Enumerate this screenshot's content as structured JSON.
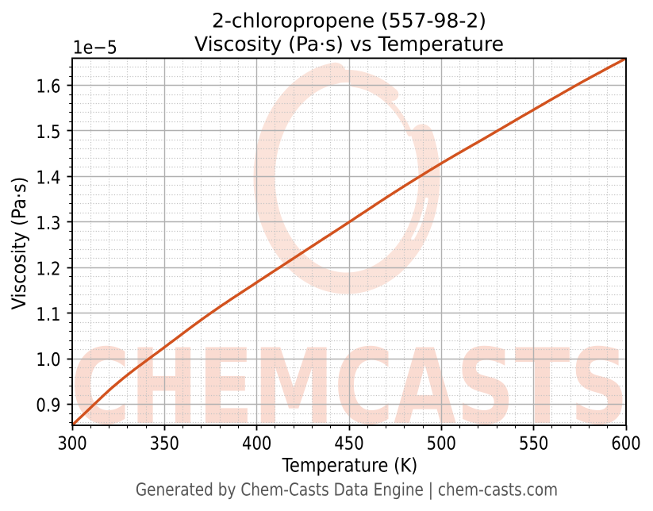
{
  "chart": {
    "title_line1": "2-chloropropene (557-98-2)",
    "title_line2": "Viscosity (Pa·s) vs Temperature",
    "xlabel": "Temperature (K)",
    "ylabel": "Viscosity (Pa·s)",
    "y_offset_label": "1e−5"
  },
  "footer": {
    "text": "Generated by Chem-Casts Data Engine | chem-casts.com"
  },
  "watermark": {
    "text": "CHEMCASTS",
    "ring_color": "#fbe3da",
    "text_color": "#fadbd1"
  },
  "colors": {
    "curve": "#d2521e",
    "major_grid": "#b0b0b0",
    "minor_grid": "#c3c3c3",
    "spine": "#000000",
    "footer_text": "#555555"
  },
  "chart_data": {
    "type": "line",
    "title": "2-chloropropene (557-98-2)",
    "subtitle": "Viscosity (Pa·s) vs Temperature",
    "xlabel": "Temperature (K)",
    "ylabel": "Viscosity (Pa·s)",
    "y_unit_multiplier": "1e-5",
    "xlim": [
      300,
      600
    ],
    "ylim": [
      0.8542,
      1.6594
    ],
    "x_major_ticks": [
      300,
      350,
      400,
      450,
      500,
      550,
      600
    ],
    "x_minor_step": 10,
    "y_major_ticks": [
      0.9,
      1.0,
      1.1,
      1.2,
      1.3,
      1.4,
      1.5,
      1.6
    ],
    "y_minor_step": 0.02,
    "grid": true,
    "legend_position": "none",
    "series": [
      {
        "name": "viscosity",
        "color": "#d2521e",
        "x": [
          300,
          325,
          350,
          375,
          400,
          425,
          450,
          475,
          500,
          525,
          550,
          575,
          600
        ],
        "y": [
          0.8545,
          0.9485,
          1.0255,
          1.1003,
          1.1678,
          1.234,
          1.3,
          1.3664,
          1.429,
          1.4876,
          1.5466,
          1.6045,
          1.6593
        ]
      }
    ]
  }
}
